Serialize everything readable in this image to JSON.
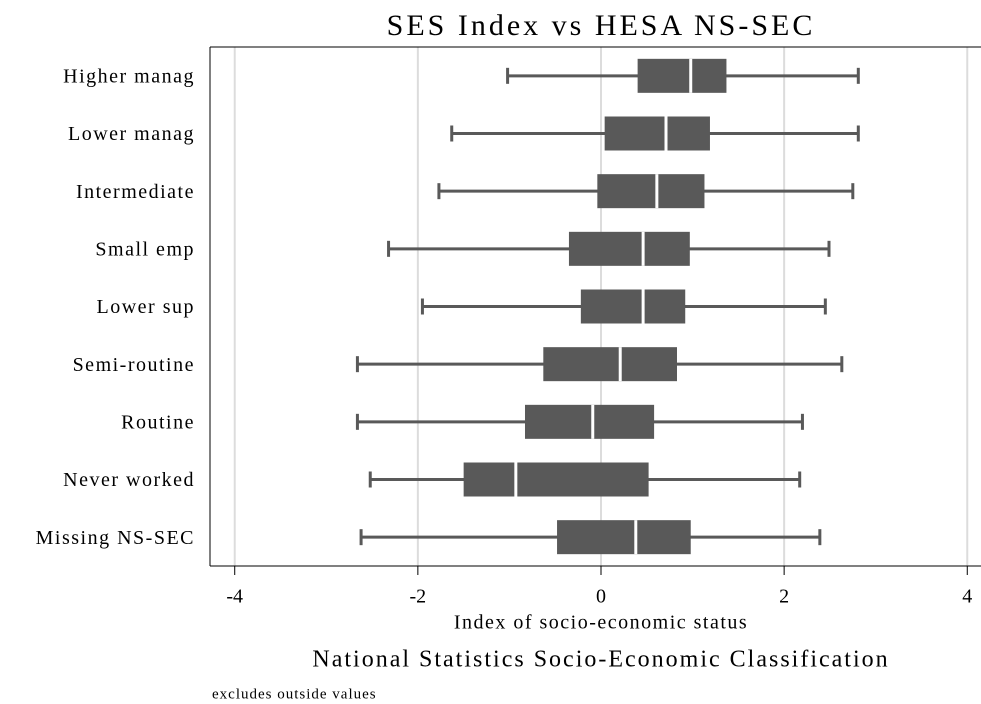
{
  "chart_data": {
    "type": "boxplot",
    "title": "SES Index vs HESA NS-SEC",
    "x_label": "Index of socio-economic status",
    "subtitle": "National Statistics Socio-Economic Classification",
    "note": "excludes outside values",
    "categories": [
      "Higher manag",
      "Lower manag",
      "Intermediate",
      "Small emp",
      "Lower sup",
      "Semi-routine",
      "Routine",
      "Never worked",
      "Missing NS-SEC"
    ],
    "min": [
      -1.02,
      -1.63,
      -1.77,
      -2.32,
      -1.95,
      -2.66,
      -2.66,
      -2.52,
      -2.62
    ],
    "q1": [
      0.4,
      0.04,
      -0.04,
      -0.35,
      -0.22,
      -0.63,
      -0.83,
      -1.5,
      -0.48
    ],
    "median": [
      0.98,
      0.71,
      0.61,
      0.46,
      0.46,
      0.21,
      -0.09,
      -0.93,
      0.38
    ],
    "q3": [
      1.37,
      1.19,
      1.13,
      0.97,
      0.92,
      0.83,
      0.58,
      0.52,
      0.98
    ],
    "max": [
      2.81,
      2.81,
      2.75,
      2.49,
      2.45,
      2.63,
      2.2,
      2.17,
      2.39
    ],
    "color": "#595959",
    "xlim": [
      -4.27,
      4.15
    ],
    "xticks": [
      -4,
      -2,
      0,
      2,
      4
    ],
    "grid": true
  }
}
